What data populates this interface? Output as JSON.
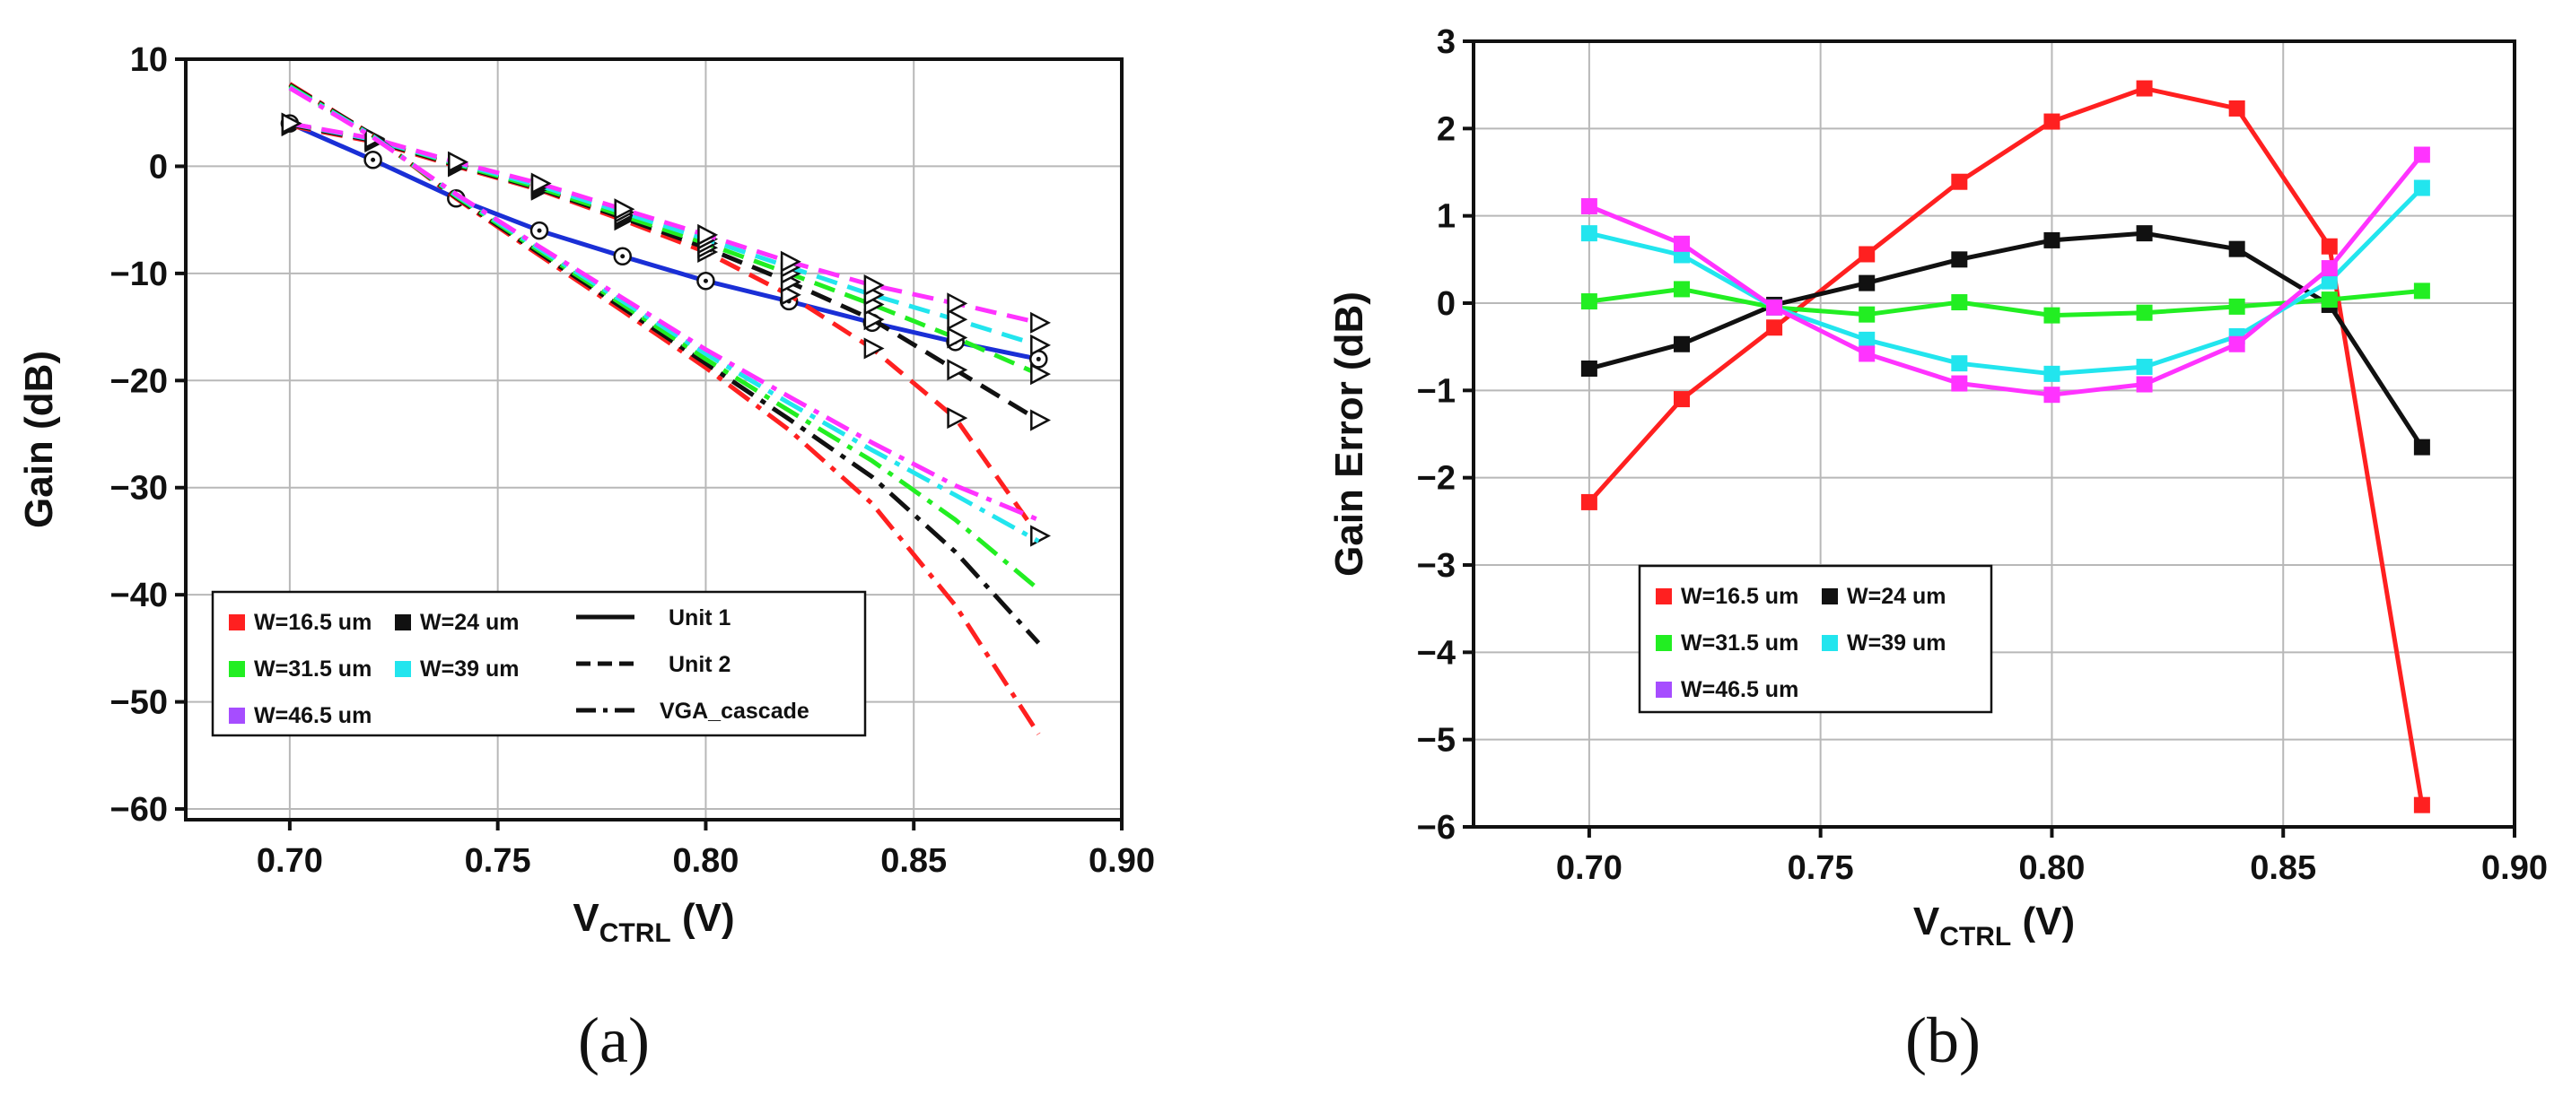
{
  "chart_data": [
    {
      "id": "a",
      "type": "line",
      "panel_label": "(a)",
      "ylabel": "Gain (dB)",
      "xlabel_main": "V",
      "xlabel_sub": "CTRL",
      "xlabel_unit": " (V)",
      "xlim": [
        0.675,
        0.9
      ],
      "ylim": [
        -61,
        10
      ],
      "xticks": [
        0.7,
        0.75,
        0.8,
        0.85,
        0.9
      ],
      "xtick_labels": [
        "0.70",
        "0.75",
        "0.80",
        "0.85",
        "0.90"
      ],
      "yticks": [
        10,
        0,
        -10,
        -20,
        -30,
        -40,
        -50,
        -60
      ],
      "ytick_labels": [
        "10",
        "0",
        "−10",
        "−20",
        "−30",
        "−40",
        "−50",
        "−60"
      ],
      "grid": true,
      "x": [
        0.7,
        0.72,
        0.74,
        0.76,
        0.78,
        0.8,
        0.82,
        0.84,
        0.86,
        0.88
      ],
      "series": [
        {
          "name": "Unit 1",
          "style": "solid",
          "color": "#1a2fd6",
          "marker": "circle",
          "values": [
            4.0,
            0.6,
            -3.0,
            -6.0,
            -8.4,
            -10.7,
            -12.6,
            -14.6,
            -16.4,
            -18.0
          ]
        },
        {
          "name": "W=16.5 um Unit 2",
          "style": "dash",
          "color": "#ff2020",
          "marker": "triangle",
          "values": [
            3.8,
            2.3,
            0.0,
            -2.2,
            -5.0,
            -8.0,
            -12.0,
            -17.0,
            -23.5,
            -34.5
          ]
        },
        {
          "name": "W=24 um Unit 2",
          "style": "dash",
          "color": "#111111",
          "marker": "triangle",
          "values": [
            3.9,
            2.4,
            0.1,
            -2.1,
            -4.8,
            -7.6,
            -10.8,
            -14.3,
            -19.0,
            -23.7
          ]
        },
        {
          "name": "W=31.5 um Unit 2",
          "style": "dash",
          "color": "#22ee22",
          "marker": "triangle",
          "values": [
            4.0,
            2.5,
            0.2,
            -2.0,
            -4.6,
            -7.2,
            -10.0,
            -12.9,
            -16.0,
            -19.4
          ]
        },
        {
          "name": "W=39 um Unit 2",
          "style": "dash",
          "color": "#22e5ee",
          "marker": "triangle",
          "values": [
            4.0,
            2.5,
            0.3,
            -1.8,
            -4.3,
            -6.8,
            -9.4,
            -12.0,
            -14.3,
            -16.7
          ]
        },
        {
          "name": "W=46.5 um Unit 2",
          "style": "dash",
          "color": "#ff33ff",
          "marker": "triangle",
          "values": [
            4.0,
            2.6,
            0.4,
            -1.6,
            -4.0,
            -6.4,
            -8.9,
            -11.1,
            -12.8,
            -14.6
          ]
        },
        {
          "name": "W=16.5 um VGA_cascade",
          "style": "dashdot",
          "color": "#ff2020",
          "marker": "none",
          "values": [
            7.7,
            2.9,
            -3.0,
            -8.3,
            -13.5,
            -18.8,
            -24.6,
            -31.5,
            -41.0,
            -53.0
          ]
        },
        {
          "name": "W=24 um VGA_cascade",
          "style": "dashdot",
          "color": "#111111",
          "marker": "none",
          "values": [
            7.6,
            2.9,
            -2.9,
            -8.1,
            -13.2,
            -18.4,
            -23.6,
            -29.0,
            -36.0,
            -44.5
          ]
        },
        {
          "name": "W=31.5 um VGA_cascade",
          "style": "dashdot",
          "color": "#22ee22",
          "marker": "none",
          "values": [
            7.5,
            2.8,
            -2.8,
            -7.9,
            -12.9,
            -18.0,
            -22.8,
            -27.5,
            -33.0,
            -39.5
          ]
        },
        {
          "name": "W=39 um VGA_cascade",
          "style": "dashdot",
          "color": "#22e5ee",
          "marker": "none",
          "values": [
            7.4,
            2.8,
            -2.7,
            -7.7,
            -12.6,
            -17.5,
            -22.1,
            -26.5,
            -30.7,
            -35.0
          ]
        },
        {
          "name": "W=46.5 um VGA_cascade",
          "style": "dashdot",
          "color": "#ff33ff",
          "marker": "none",
          "values": [
            7.3,
            2.7,
            -2.6,
            -7.5,
            -12.3,
            -17.1,
            -21.5,
            -25.8,
            -29.8,
            -33.0
          ]
        }
      ],
      "legend": {
        "placement": "lower-left",
        "colors": [
          {
            "label": "W=16.5 um",
            "color": "#ff2020"
          },
          {
            "label": "W=24 um",
            "color": "#111111"
          },
          {
            "label": "W=31.5 um",
            "color": "#22ee22"
          },
          {
            "label": "W=39 um",
            "color": "#22e5ee"
          },
          {
            "label": "W=46.5 um",
            "color": "#a64dff"
          }
        ],
        "styles": [
          {
            "label": "Unit 1",
            "style": "solid"
          },
          {
            "label": "Unit 2",
            "style": "dash"
          },
          {
            "label": "VGA_cascade",
            "style": "dashdot"
          }
        ]
      }
    },
    {
      "id": "b",
      "type": "line",
      "panel_label": "(b)",
      "ylabel": "Gain Error (dB)",
      "xlabel_main": "V",
      "xlabel_sub": "CTRL",
      "xlabel_unit": " (V)",
      "xlim": [
        0.675,
        0.9
      ],
      "ylim": [
        -6,
        3
      ],
      "xticks": [
        0.7,
        0.75,
        0.8,
        0.85,
        0.9
      ],
      "xtick_labels": [
        "0.70",
        "0.75",
        "0.80",
        "0.85",
        "0.90"
      ],
      "yticks": [
        3,
        2,
        1,
        0,
        -1,
        -2,
        -3,
        -4,
        -5,
        -6
      ],
      "ytick_labels": [
        "3",
        "2",
        "1",
        "0",
        "−1",
        "−2",
        "−3",
        "−4",
        "−5",
        "−6"
      ],
      "grid": true,
      "x": [
        0.7,
        0.72,
        0.74,
        0.76,
        0.78,
        0.8,
        0.82,
        0.84,
        0.86,
        0.88
      ],
      "series": [
        {
          "name": "W=16.5 um",
          "color": "#ff2020",
          "values": [
            -2.28,
            -1.1,
            -0.28,
            0.56,
            1.39,
            2.08,
            2.46,
            2.23,
            0.65,
            -5.75
          ]
        },
        {
          "name": "W=24 um",
          "color": "#111111",
          "values": [
            -0.75,
            -0.47,
            -0.02,
            0.23,
            0.5,
            0.72,
            0.8,
            0.62,
            -0.02,
            -1.65
          ]
        },
        {
          "name": "W=31.5 um",
          "color": "#22ee22",
          "values": [
            0.02,
            0.16,
            -0.05,
            -0.13,
            0.01,
            -0.14,
            -0.11,
            -0.04,
            0.04,
            0.14
          ]
        },
        {
          "name": "W=39 um",
          "color": "#22e5ee",
          "values": [
            0.8,
            0.55,
            -0.05,
            -0.42,
            -0.69,
            -0.81,
            -0.73,
            -0.38,
            0.25,
            1.32
          ]
        },
        {
          "name": "W=46.5 um",
          "color": "#ff33ff",
          "values": [
            1.11,
            0.68,
            -0.05,
            -0.58,
            -0.92,
            -1.05,
            -0.93,
            -0.47,
            0.4,
            1.7
          ]
        }
      ],
      "legend": {
        "placement": "lower-left",
        "colors": [
          {
            "label": "W=16.5 um",
            "color": "#ff2020"
          },
          {
            "label": "W=24 um",
            "color": "#111111"
          },
          {
            "label": "W=31.5 um",
            "color": "#22ee22"
          },
          {
            "label": "W=39 um",
            "color": "#22e5ee"
          },
          {
            "label": "W=46.5 um",
            "color": "#a64dff"
          }
        ]
      }
    }
  ]
}
